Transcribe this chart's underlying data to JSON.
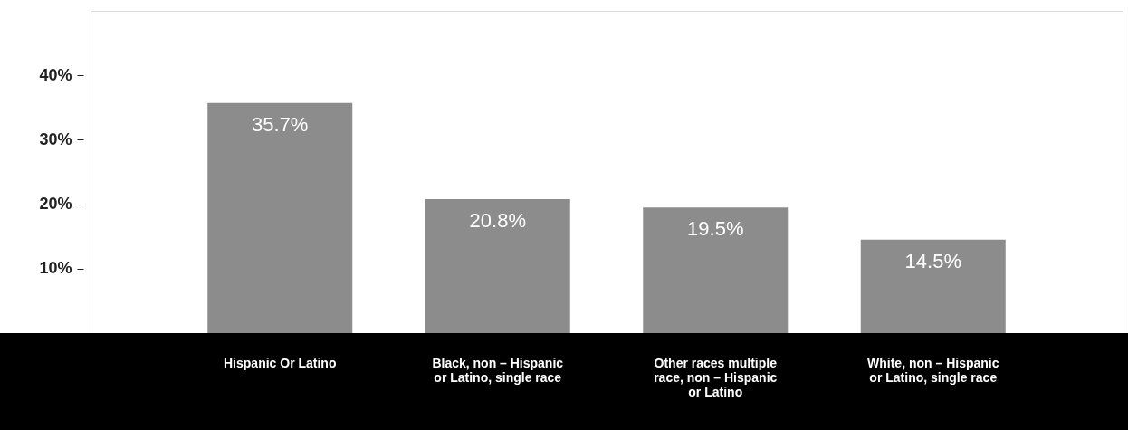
{
  "chart_data": {
    "type": "bar",
    "categories": [
      "Hispanic Or Latino",
      "Black, non – Hispanic or Latino, single race",
      "Other races multiple race, non – Hispanic or Latino",
      "White, non – Hispanic or Latino, single race"
    ],
    "values": [
      35.7,
      20.8,
      19.5,
      14.5
    ],
    "value_labels": [
      "35.7%",
      "20.8%",
      "19.5%",
      "14.5%"
    ],
    "color": "#8c8c8c",
    "ylim": [
      0,
      50
    ],
    "yticks": [
      {
        "value": 10,
        "label": "10%"
      },
      {
        "value": 20,
        "label": "20%"
      },
      {
        "value": 30,
        "label": "30%"
      },
      {
        "value": 40,
        "label": "40%"
      }
    ],
    "grid": false
  }
}
